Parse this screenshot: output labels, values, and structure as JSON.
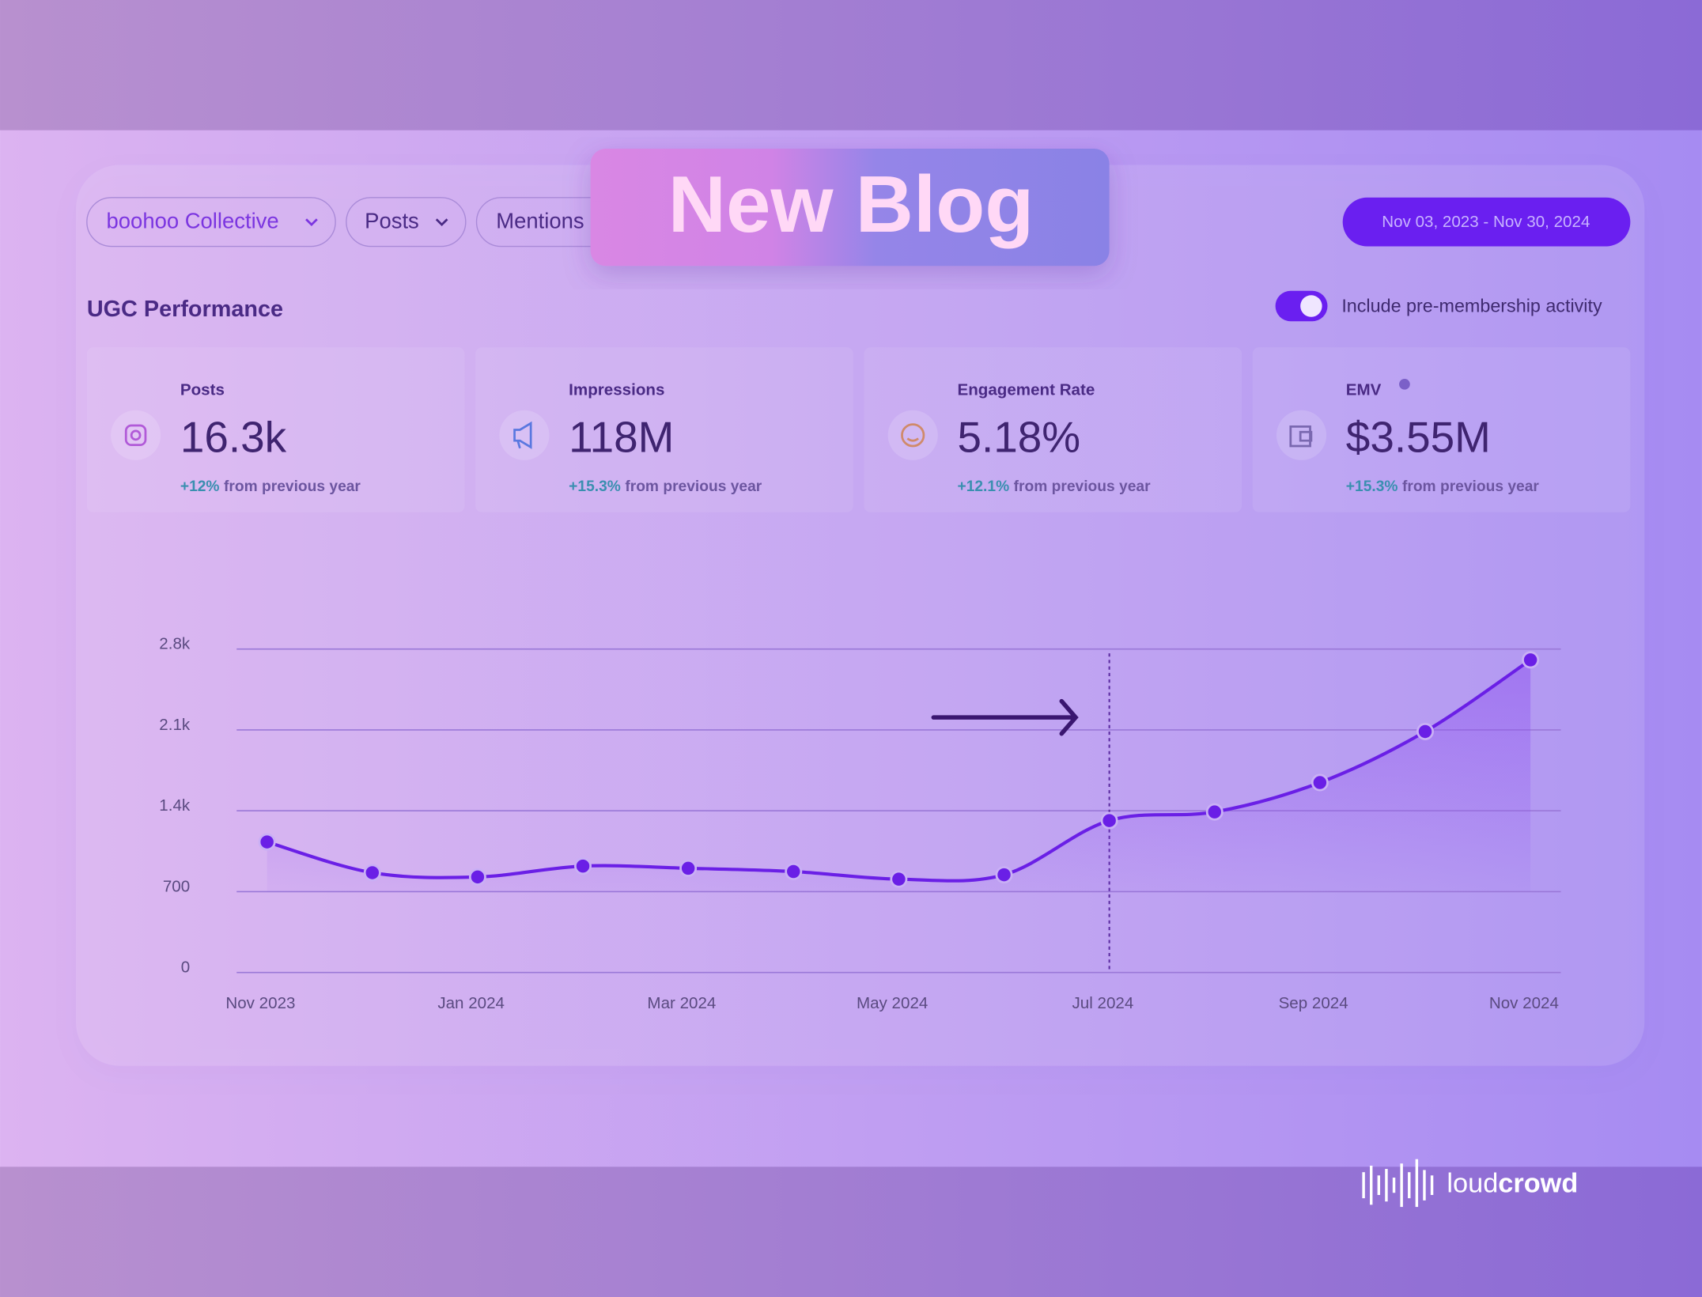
{
  "banner": "New Blog",
  "filters": [
    "boohoo Collective",
    "Posts",
    "Mentions"
  ],
  "date_range": "Nov 03, 2023 - Nov 30, 2024",
  "section_title": "UGC Performance",
  "toggle_label": "Include pre-membership activity",
  "metrics": [
    {
      "label": "Posts",
      "value": "16.3k",
      "change": "+12%",
      "note": "from previous year"
    },
    {
      "label": "Impressions",
      "value": "118M",
      "change": "+15.3%",
      "note": "from previous year"
    },
    {
      "label": "Engagement Rate",
      "value": "5.18%",
      "change": "+12.1%",
      "note": "from previous year"
    },
    {
      "label": "EMV",
      "value": "$3.55M",
      "change": "+15.3%",
      "note": "from previous year"
    }
  ],
  "chart_data": {
    "type": "line",
    "categories": [
      "Nov 2023",
      null,
      "Jan 2024",
      null,
      "Mar 2024",
      null,
      "May 2024",
      null,
      "Jul 2024",
      null,
      "Sep 2024",
      null,
      "Nov 2024"
    ],
    "series": [
      {
        "name": "Posts",
        "color": "#6a1fe6",
        "values": [
          1130,
          864,
          827,
          921,
          902,
          874,
          808,
          846,
          1315,
          1390,
          1644,
          2086,
          2706
        ]
      }
    ],
    "ylim": [
      0,
      2800
    ],
    "yticks": [
      0,
      700,
      {
        "value": 1400,
        "label": "1.4k"
      },
      {
        "value": 2100,
        "label": "2.1k"
      },
      {
        "value": 2800,
        "label": "2.8k"
      }
    ],
    "grid": true
  },
  "brand": {
    "light": "loud",
    "bold": "crowd"
  }
}
